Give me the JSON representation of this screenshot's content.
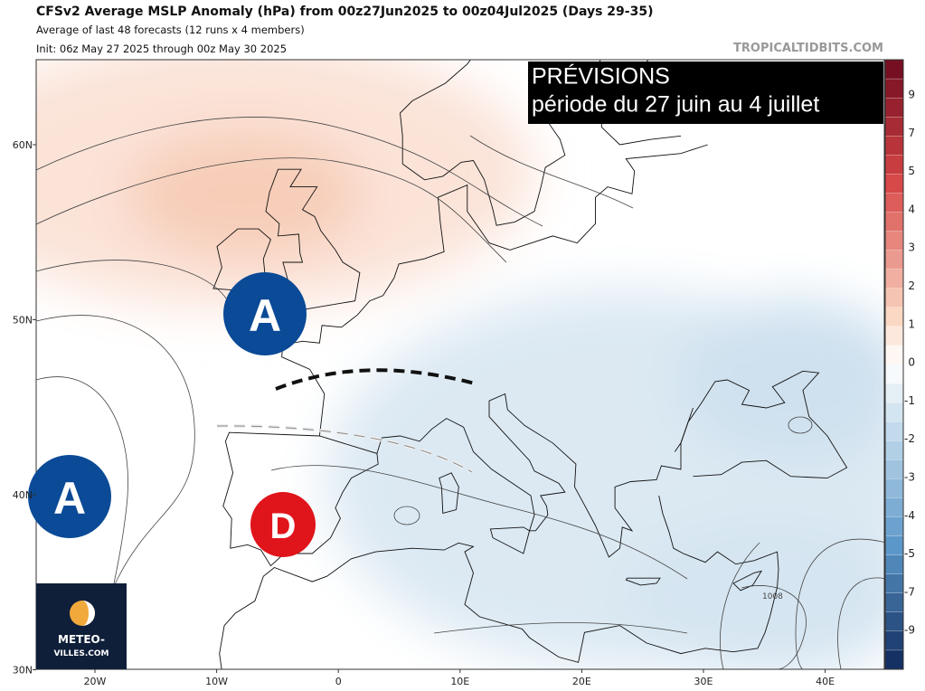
{
  "header": {
    "title": "CFSv2 Average MSLP Anomaly (hPa) from 00z27Jun2025 to 00z04Jul2025 (Days 29-35)",
    "subtitle": "Average of last 48 forecasts (12 runs x 4 members)",
    "init": "Init: 06z May 27 2025 through 00z May 30 2025",
    "credit": "TROPICALTIDBITS.COM"
  },
  "banner": {
    "line1": "PRÉVISIONS",
    "line2": "période du 27 juin au 4 juillet"
  },
  "markers": [
    {
      "label": "A"
    },
    {
      "label": "A"
    },
    {
      "label": "D"
    }
  ],
  "contour_label": "1008",
  "logo": {
    "line1": "METEO-",
    "line2": "VILLES.COM"
  },
  "lat_labels": [
    "60N",
    "50N",
    "40N",
    "30N"
  ],
  "lon_labels": [
    "20W",
    "10W",
    "0",
    "10E",
    "20E",
    "30E",
    "40E"
  ],
  "colorbar": {
    "labels": [
      9,
      7,
      5,
      4,
      3,
      2,
      1,
      0,
      -1,
      -2,
      -3,
      -4,
      -5,
      -7,
      -9
    ]
  }
}
